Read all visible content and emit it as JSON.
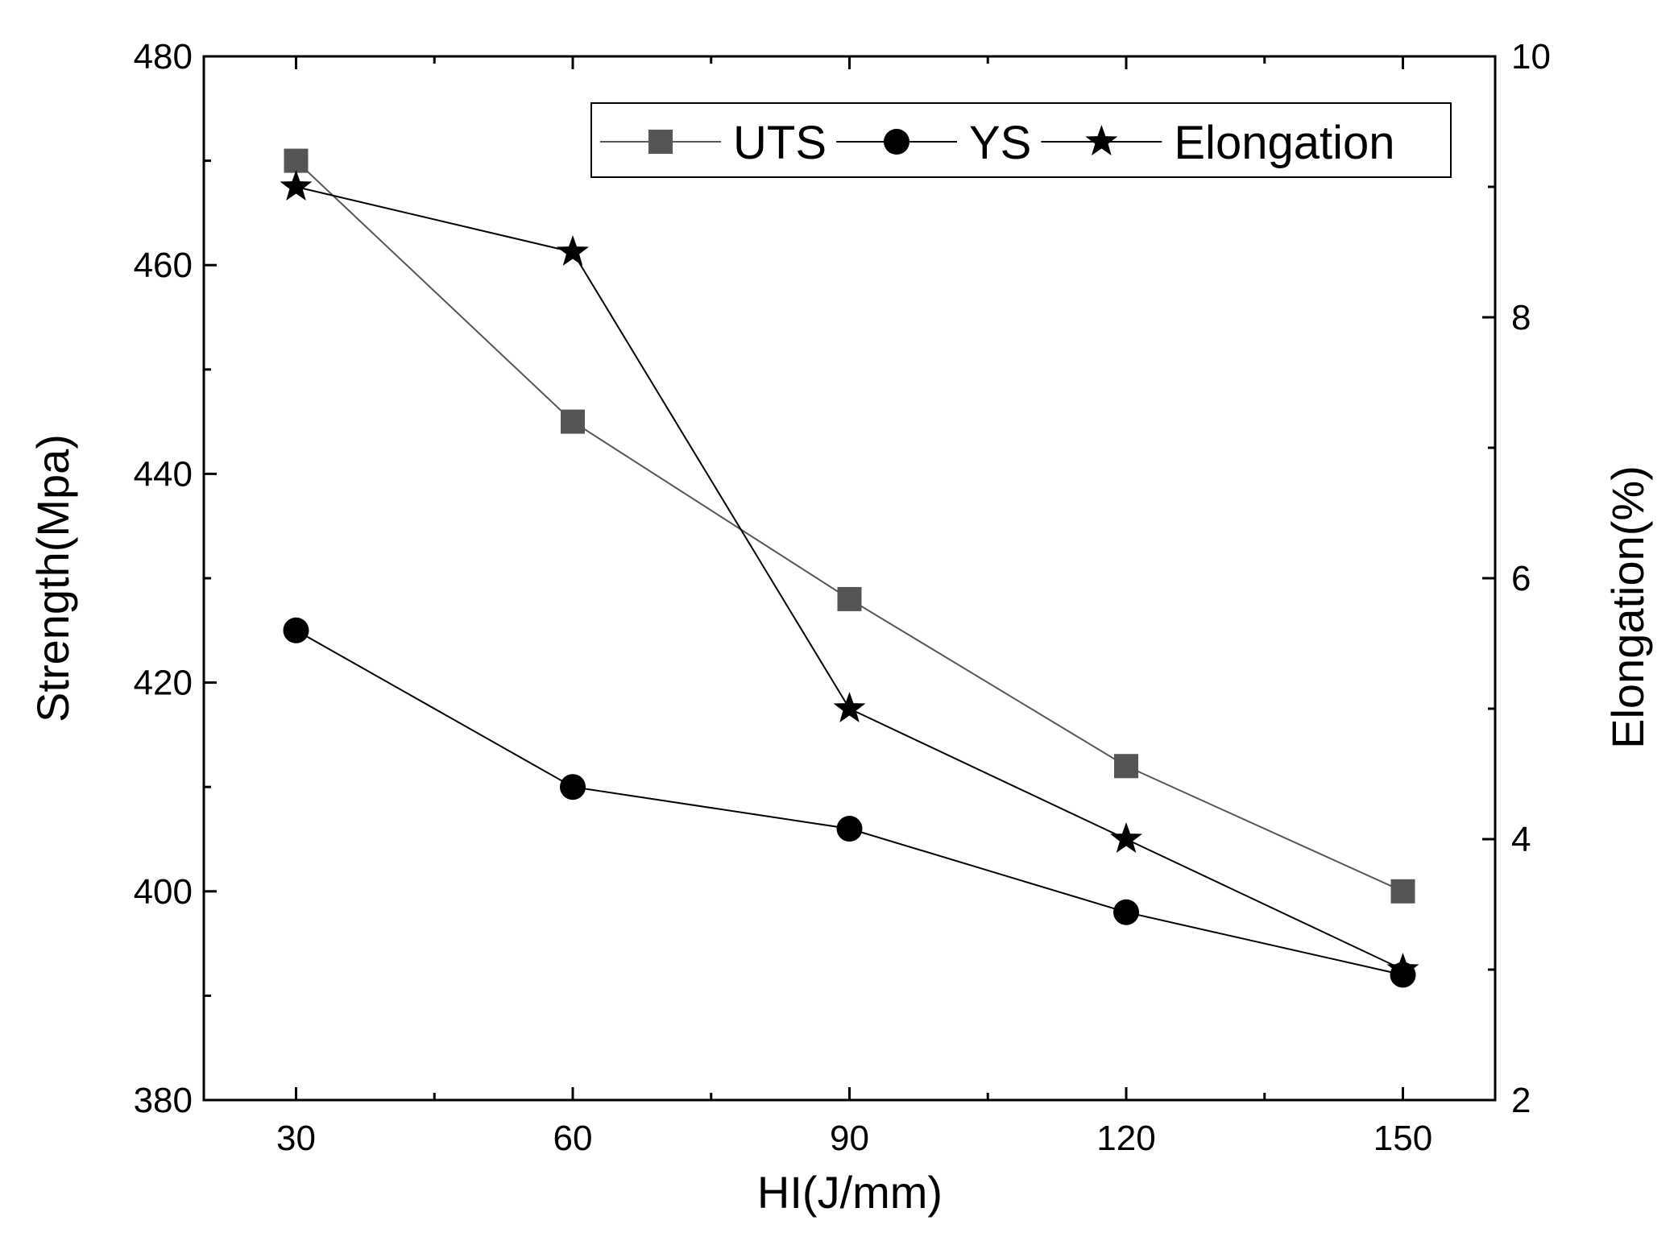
{
  "chart_data": {
    "type": "line",
    "title": "",
    "xlabel": "HI(J/mm)",
    "ylabel_left": "Strength(Mpa)",
    "ylabel_right": "Elongation(%)",
    "x": [
      30,
      60,
      90,
      120,
      150
    ],
    "x_ticks": [
      30,
      60,
      90,
      120,
      150
    ],
    "xlim": [
      20,
      160
    ],
    "ylim_left": [
      380,
      480
    ],
    "ylim_right": [
      2,
      10
    ],
    "y_ticks_left": [
      380,
      400,
      420,
      440,
      460,
      480
    ],
    "y_ticks_right": [
      2,
      4,
      6,
      8,
      10
    ],
    "legend_position": "top-right",
    "series": [
      {
        "name": "UTS",
        "axis": "left",
        "marker": "square",
        "color": "#555555",
        "values": [
          470,
          445,
          428,
          412,
          400
        ]
      },
      {
        "name": "YS",
        "axis": "left",
        "marker": "circle",
        "color": "#000000",
        "values": [
          425,
          410,
          406,
          398,
          392
        ]
      },
      {
        "name": "Elongation",
        "axis": "right",
        "marker": "star",
        "color": "#000000",
        "values": [
          9.0,
          8.5,
          5.0,
          4.0,
          3.0
        ]
      }
    ]
  }
}
